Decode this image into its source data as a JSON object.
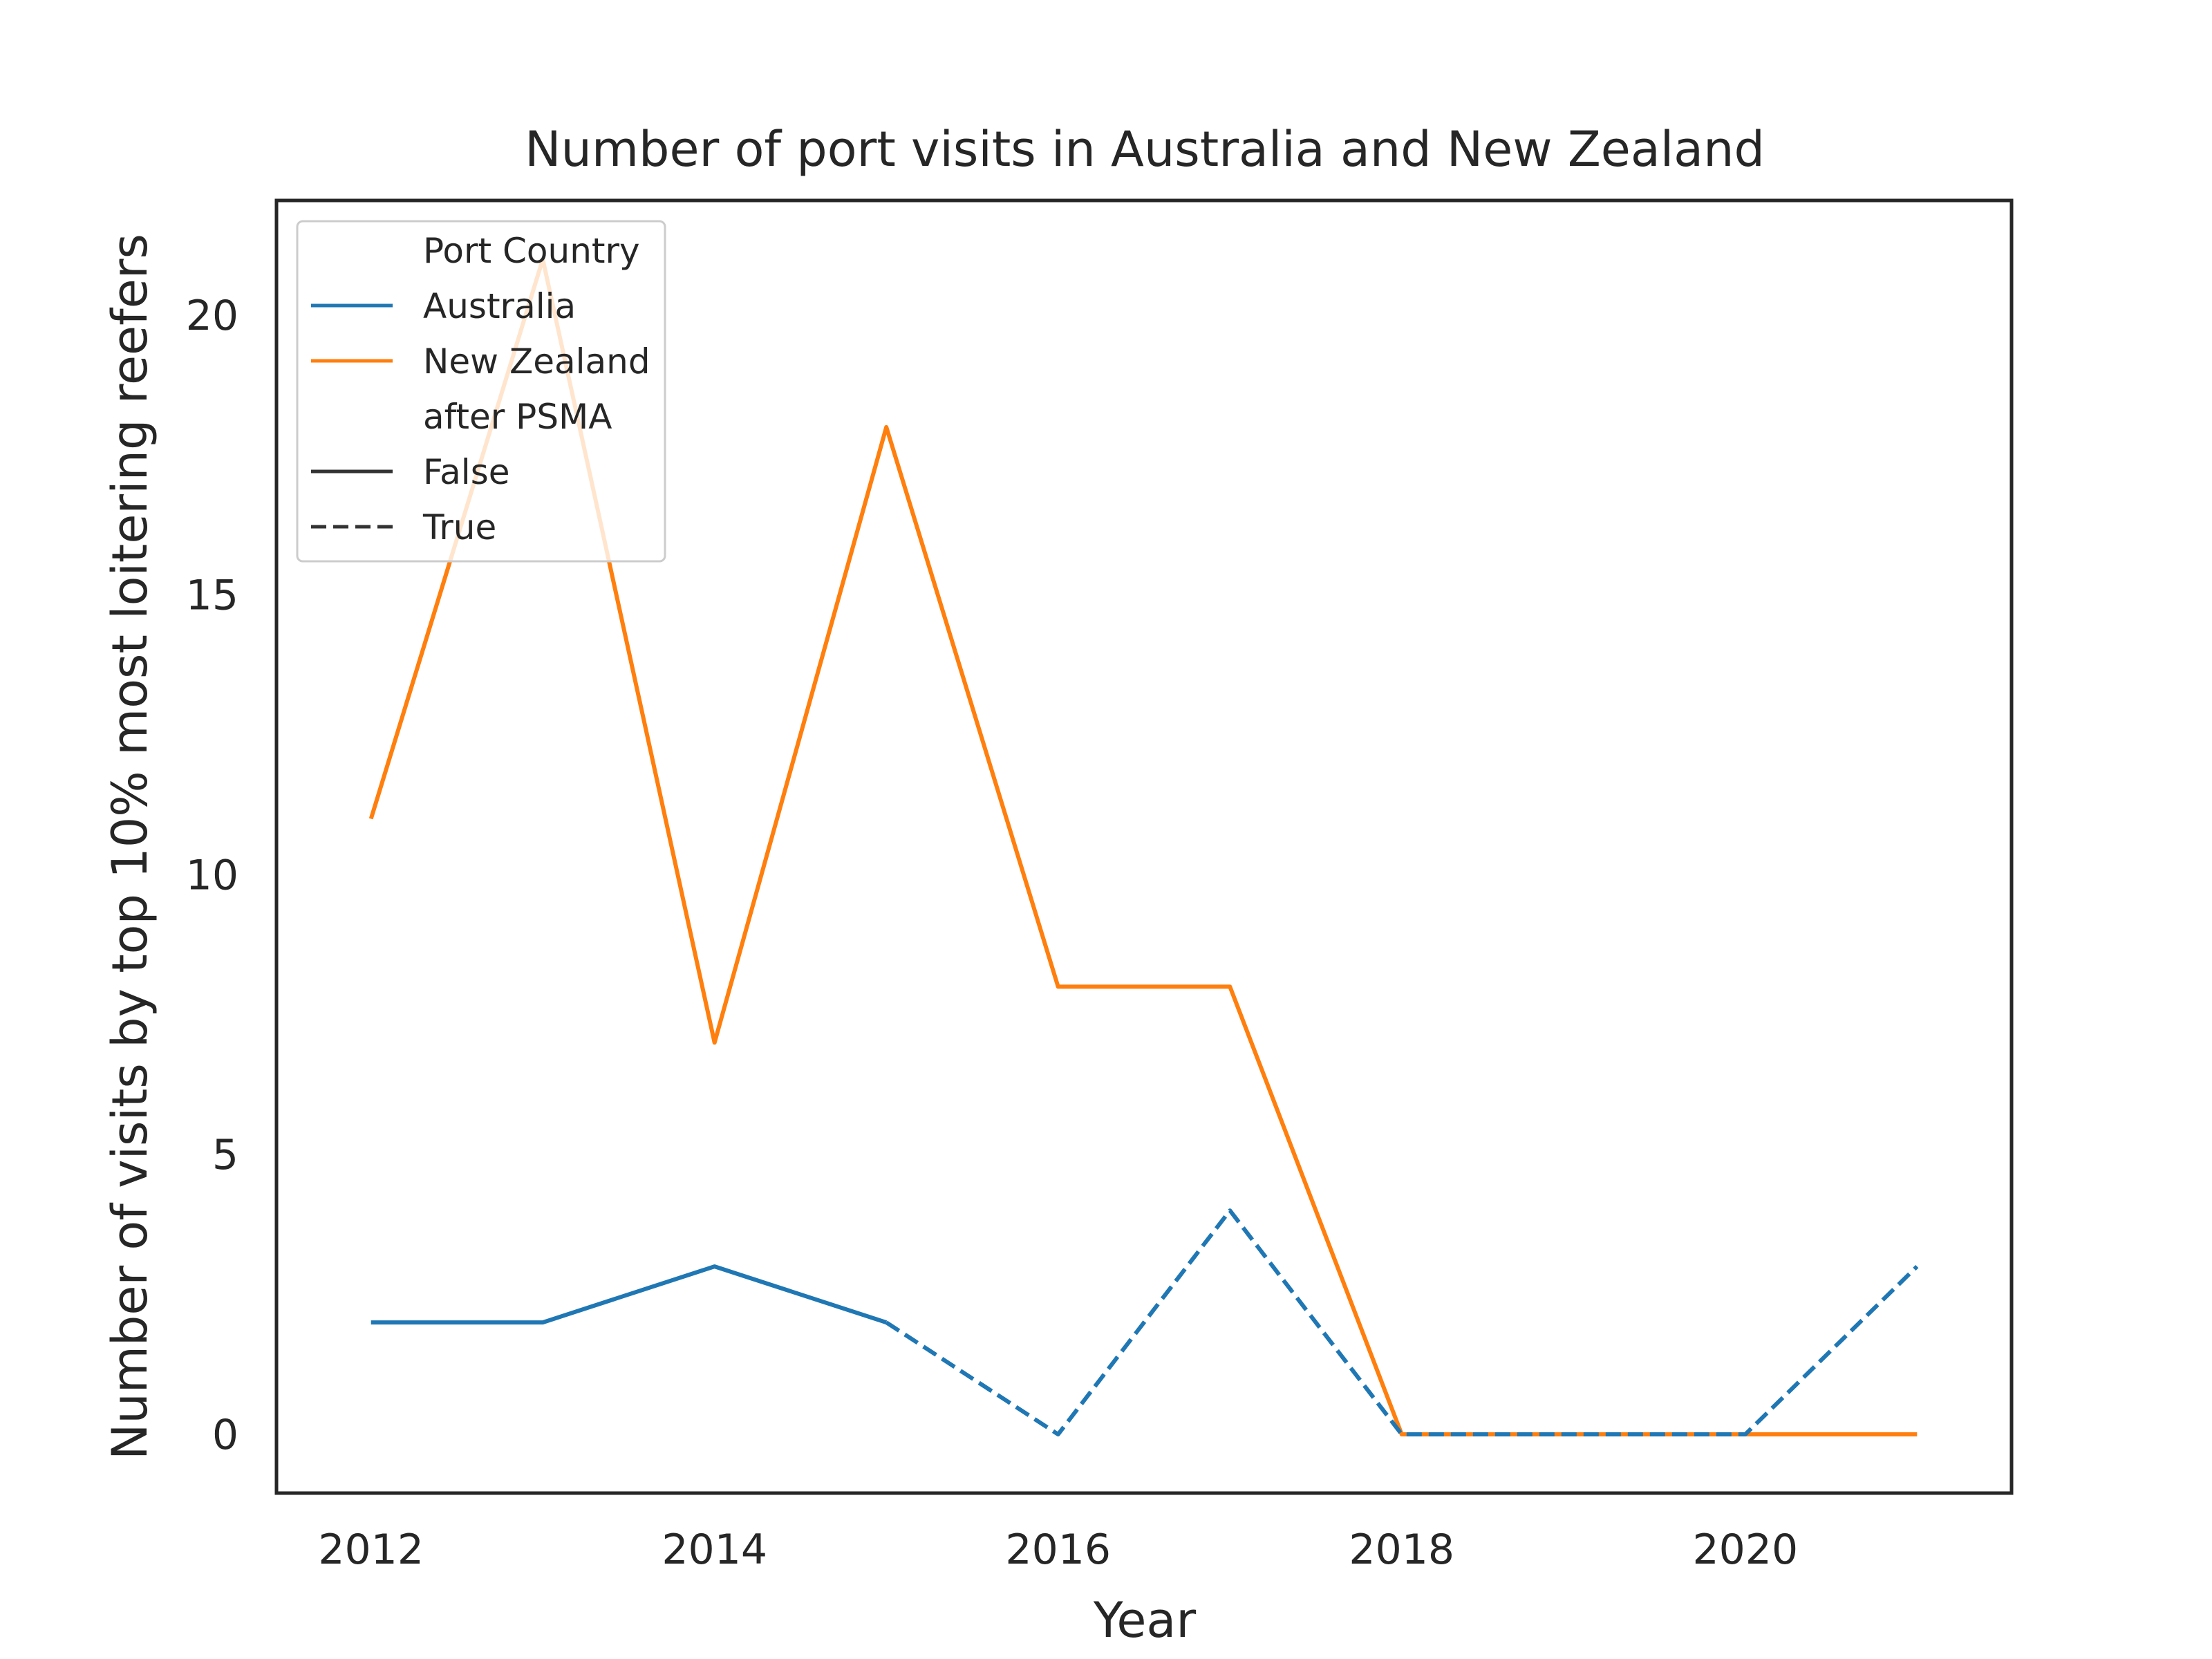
{
  "chart_data": {
    "type": "line",
    "title": "Number of port visits in Australia and New Zealand",
    "xlabel": "Year",
    "ylabel": "Number of visits by top 10% most loitering reefers",
    "xlim": [
      2011.45,
      2021.55
    ],
    "ylim": [
      -1.05,
      22.05
    ],
    "x_ticks": [
      "2012",
      "2014",
      "2016",
      "2018",
      "2020"
    ],
    "y_ticks": [
      "0",
      "5",
      "10",
      "15",
      "20"
    ],
    "grid": false,
    "legend": {
      "placement": "top-left",
      "hue_title": "Port Country",
      "style_title": "after PSMA",
      "style_entries": [
        {
          "label": "False",
          "dash": "solid"
        },
        {
          "label": "True",
          "dash": "dashed"
        }
      ]
    },
    "series": [
      {
        "name": "Australia",
        "color": "#1f77b4",
        "segments": [
          {
            "after_psma": "False",
            "x": [
              2012,
              2013,
              2014,
              2015
            ],
            "y": [
              2,
              2,
              3,
              2
            ]
          },
          {
            "after_psma": "True",
            "x": [
              2015,
              2016,
              2017,
              2018,
              2019,
              2020,
              2021
            ],
            "y": [
              2,
              0,
              4,
              0,
              0,
              0,
              3
            ]
          }
        ]
      },
      {
        "name": "New Zealand",
        "color": "#ff7f0e",
        "segments": [
          {
            "after_psma": "False",
            "x": [
              2012,
              2013,
              2014,
              2015,
              2016,
              2017,
              2018,
              2019,
              2020,
              2021
            ],
            "y": [
              11,
              21,
              7,
              18,
              8,
              8,
              0,
              0,
              0,
              0
            ]
          }
        ]
      }
    ]
  }
}
